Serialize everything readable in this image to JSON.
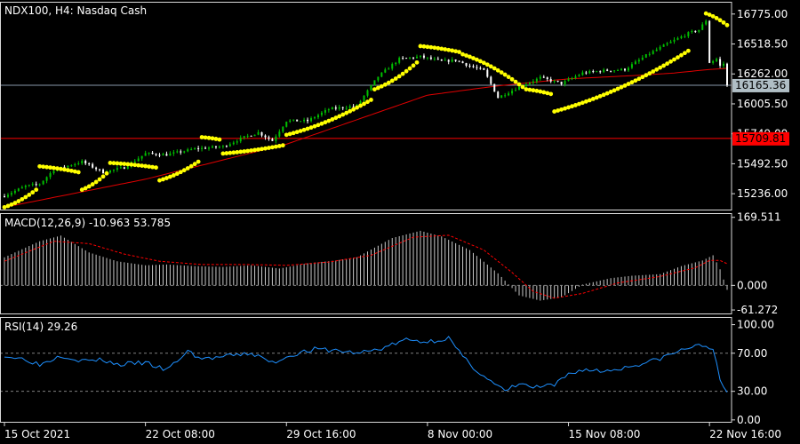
{
  "colors": {
    "background": "#000000",
    "frame": "#d9d9d9",
    "bull_candle": "#00c000",
    "bear_candle": "#ffffff",
    "parabolic_sar": "#ffff00",
    "moving_average": "#e00000",
    "macd_histogram": "#c8c8c8",
    "macd_signal": "#ff0000",
    "rsi_line": "#1e90ff",
    "bid_line": "#8899aa",
    "bid_tag": "#b0bec5",
    "alert_line": "#ff0000",
    "alert_tag": "#ff0000",
    "level_line": "#808080"
  },
  "chart_data": [
    {
      "type": "candlestick",
      "title": "NDX100, H4:  Nasdaq Cash",
      "ylim": [
        15100,
        16880
      ],
      "y_ticks": [
        "16775.00",
        "16518.50",
        "16262.00",
        "16005.50",
        "15749.00",
        "15492.50",
        "15236.00"
      ],
      "hidden_tick_count": 0,
      "bid_price": "16165.36",
      "bid_value": 16165.36,
      "alert_price": "15709.81",
      "alert_value": 15709.81,
      "x_labels": [
        "15 Oct 2021",
        "22 Oct 08:00",
        "29 Oct 16:00",
        "8 Nov 00:00",
        "15 Nov 08:00",
        "22 Nov 16:00"
      ],
      "x_label_bars": [
        0,
        40,
        80,
        120,
        160,
        200
      ],
      "bar_count": 206,
      "close_anchors": [
        [
          0,
          15220
        ],
        [
          6,
          15300
        ],
        [
          10,
          15320
        ],
        [
          14,
          15440
        ],
        [
          22,
          15510
        ],
        [
          28,
          15420
        ],
        [
          34,
          15460
        ],
        [
          40,
          15580
        ],
        [
          46,
          15570
        ],
        [
          54,
          15620
        ],
        [
          62,
          15640
        ],
        [
          68,
          15720
        ],
        [
          72,
          15760
        ],
        [
          76,
          15690
        ],
        [
          80,
          15860
        ],
        [
          86,
          15860
        ],
        [
          92,
          15960
        ],
        [
          100,
          15990
        ],
        [
          106,
          16240
        ],
        [
          112,
          16390
        ],
        [
          118,
          16410
        ],
        [
          124,
          16370
        ],
        [
          128,
          16380
        ],
        [
          132,
          16330
        ],
        [
          136,
          16290
        ],
        [
          140,
          16060
        ],
        [
          146,
          16150
        ],
        [
          152,
          16230
        ],
        [
          158,
          16180
        ],
        [
          164,
          16270
        ],
        [
          170,
          16290
        ],
        [
          176,
          16300
        ],
        [
          182,
          16420
        ],
        [
          188,
          16520
        ],
        [
          194,
          16610
        ],
        [
          197,
          16640
        ],
        [
          199,
          16720
        ],
        [
          200,
          16360
        ],
        [
          202,
          16390
        ],
        [
          203,
          16330
        ],
        [
          204,
          16350
        ],
        [
          205,
          16160
        ]
      ],
      "sar_segments": [
        {
          "start": 0,
          "end": 9,
          "from": 15120,
          "to": 15270
        },
        {
          "start": 10,
          "end": 21,
          "from": 15470,
          "to": 15420
        },
        {
          "start": 22,
          "end": 29,
          "from": 15270,
          "to": 15410
        },
        {
          "start": 30,
          "end": 43,
          "from": 15500,
          "to": 15460
        },
        {
          "start": 44,
          "end": 55,
          "from": 15350,
          "to": 15510
        },
        {
          "start": 56,
          "end": 61,
          "from": 15720,
          "to": 15700
        },
        {
          "start": 62,
          "end": 79,
          "from": 15580,
          "to": 15650
        },
        {
          "start": 80,
          "end": 104,
          "from": 15740,
          "to": 16040
        },
        {
          "start": 105,
          "end": 117,
          "from": 16130,
          "to": 16360
        },
        {
          "start": 118,
          "end": 129,
          "from": 16500,
          "to": 16450
        },
        {
          "start": 130,
          "end": 147,
          "from": 16430,
          "to": 16150
        },
        {
          "start": 148,
          "end": 155,
          "from": 16130,
          "to": 16090
        },
        {
          "start": 156,
          "end": 194,
          "from": 15940,
          "to": 16460
        },
        {
          "start": 199,
          "end": 205,
          "from": 16780,
          "to": 16680
        }
      ],
      "ma_anchors": [
        [
          0,
          15120
        ],
        [
          40,
          15360
        ],
        [
          80,
          15660
        ],
        [
          100,
          15870
        ],
        [
          120,
          16080
        ],
        [
          140,
          16160
        ],
        [
          160,
          16220
        ],
        [
          180,
          16250
        ],
        [
          190,
          16270
        ],
        [
          200,
          16300
        ],
        [
          205,
          16310
        ]
      ]
    },
    {
      "type": "bar",
      "title": "MACD(12,26,9) -10.963 53.785",
      "ylim": [
        -70,
        180
      ],
      "y_ticks": [
        "169.511",
        "0.000",
        "-61.272"
      ],
      "hist_anchors": [
        [
          0,
          70
        ],
        [
          10,
          110
        ],
        [
          16,
          124
        ],
        [
          24,
          82
        ],
        [
          32,
          60
        ],
        [
          40,
          50
        ],
        [
          46,
          52
        ],
        [
          54,
          48
        ],
        [
          62,
          46
        ],
        [
          70,
          50
        ],
        [
          78,
          42
        ],
        [
          86,
          55
        ],
        [
          94,
          62
        ],
        [
          100,
          70
        ],
        [
          110,
          118
        ],
        [
          118,
          136
        ],
        [
          124,
          122
        ],
        [
          132,
          88
        ],
        [
          140,
          30
        ],
        [
          146,
          -25
        ],
        [
          152,
          -38
        ],
        [
          158,
          -30
        ],
        [
          164,
          2
        ],
        [
          172,
          18
        ],
        [
          178,
          24
        ],
        [
          186,
          28
        ],
        [
          192,
          48
        ],
        [
          198,
          62
        ],
        [
          201,
          75
        ],
        [
          203,
          40
        ],
        [
          205,
          -11
        ]
      ],
      "signal_anchors": [
        [
          0,
          60
        ],
        [
          14,
          110
        ],
        [
          24,
          104
        ],
        [
          34,
          78
        ],
        [
          44,
          60
        ],
        [
          56,
          52
        ],
        [
          68,
          52
        ],
        [
          80,
          50
        ],
        [
          92,
          58
        ],
        [
          104,
          75
        ],
        [
          116,
          120
        ],
        [
          126,
          125
        ],
        [
          136,
          88
        ],
        [
          144,
          32
        ],
        [
          150,
          -15
        ],
        [
          156,
          -32
        ],
        [
          164,
          -20
        ],
        [
          174,
          6
        ],
        [
          186,
          22
        ],
        [
          196,
          44
        ],
        [
          200,
          62
        ],
        [
          203,
          62
        ],
        [
          205,
          54
        ]
      ]
    },
    {
      "type": "line",
      "title": "RSI(14) 29.26",
      "ylim": [
        -2,
        108
      ],
      "y_ticks": [
        "100.00",
        "70.00",
        "30.00",
        "0.00"
      ],
      "levels": [
        70,
        30
      ],
      "rsi_anchors": [
        [
          0,
          66
        ],
        [
          6,
          64
        ],
        [
          10,
          58
        ],
        [
          16,
          68
        ],
        [
          22,
          62
        ],
        [
          28,
          63
        ],
        [
          32,
          58
        ],
        [
          40,
          60
        ],
        [
          46,
          52
        ],
        [
          52,
          72
        ],
        [
          56,
          64
        ],
        [
          62,
          66
        ],
        [
          70,
          70
        ],
        [
          76,
          60
        ],
        [
          82,
          69
        ],
        [
          88,
          74
        ],
        [
          94,
          73
        ],
        [
          100,
          70
        ],
        [
          106,
          74
        ],
        [
          114,
          84
        ],
        [
          120,
          82
        ],
        [
          126,
          86
        ],
        [
          130,
          66
        ],
        [
          134,
          52
        ],
        [
          138,
          40
        ],
        [
          142,
          30
        ],
        [
          146,
          38
        ],
        [
          150,
          34
        ],
        [
          156,
          36
        ],
        [
          160,
          48
        ],
        [
          164,
          53
        ],
        [
          170,
          51
        ],
        [
          176,
          55
        ],
        [
          184,
          62
        ],
        [
          190,
          70
        ],
        [
          194,
          76
        ],
        [
          198,
          78
        ],
        [
          201,
          76
        ],
        [
          203,
          40
        ],
        [
          205,
          29
        ]
      ]
    }
  ]
}
